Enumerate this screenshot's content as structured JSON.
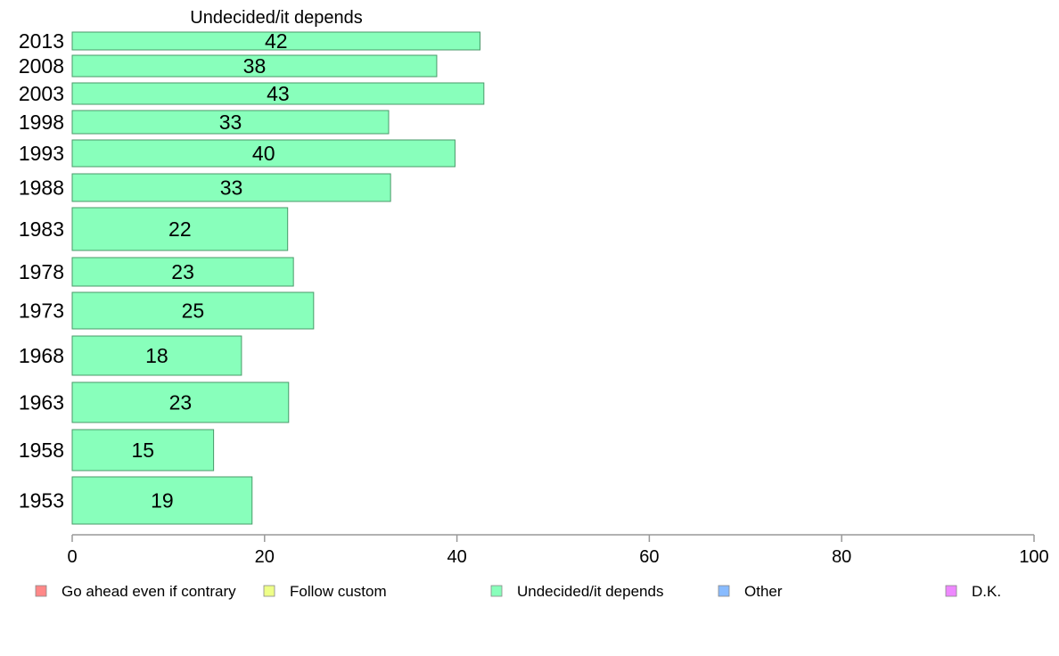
{
  "chart_data": {
    "type": "bar",
    "orientation": "horizontal",
    "title": "Undecided/it depends",
    "categories": [
      "2013",
      "2008",
      "2003",
      "1998",
      "1993",
      "1988",
      "1983",
      "1978",
      "1973",
      "1968",
      "1963",
      "1958",
      "1953"
    ],
    "values": [
      42.4,
      37.9,
      42.8,
      32.9,
      39.8,
      33.1,
      22.4,
      23.0,
      25.1,
      17.6,
      22.5,
      14.7,
      18.7
    ],
    "value_labels": [
      "42",
      "38",
      "43",
      "33",
      "40",
      "33",
      "22",
      "23",
      "25",
      "18",
      "23",
      "15",
      "19"
    ],
    "xlim": [
      0,
      100
    ],
    "xticks": [
      "0",
      "20",
      "40",
      "60",
      "80",
      "100"
    ],
    "bar_color": "#88ffbb",
    "bar_border": "#4a9a6a",
    "legend": {
      "position": "bottom",
      "items": [
        {
          "label": "Go ahead even if contrary",
          "color": "#ff8888"
        },
        {
          "label": "Follow custom",
          "color": "#eeff88"
        },
        {
          "label": "Undecided/it depends",
          "color": "#88ffbb"
        },
        {
          "label": "Other",
          "color": "#88bbff"
        },
        {
          "label": "D.K.",
          "color": "#ee88ff"
        }
      ]
    }
  }
}
